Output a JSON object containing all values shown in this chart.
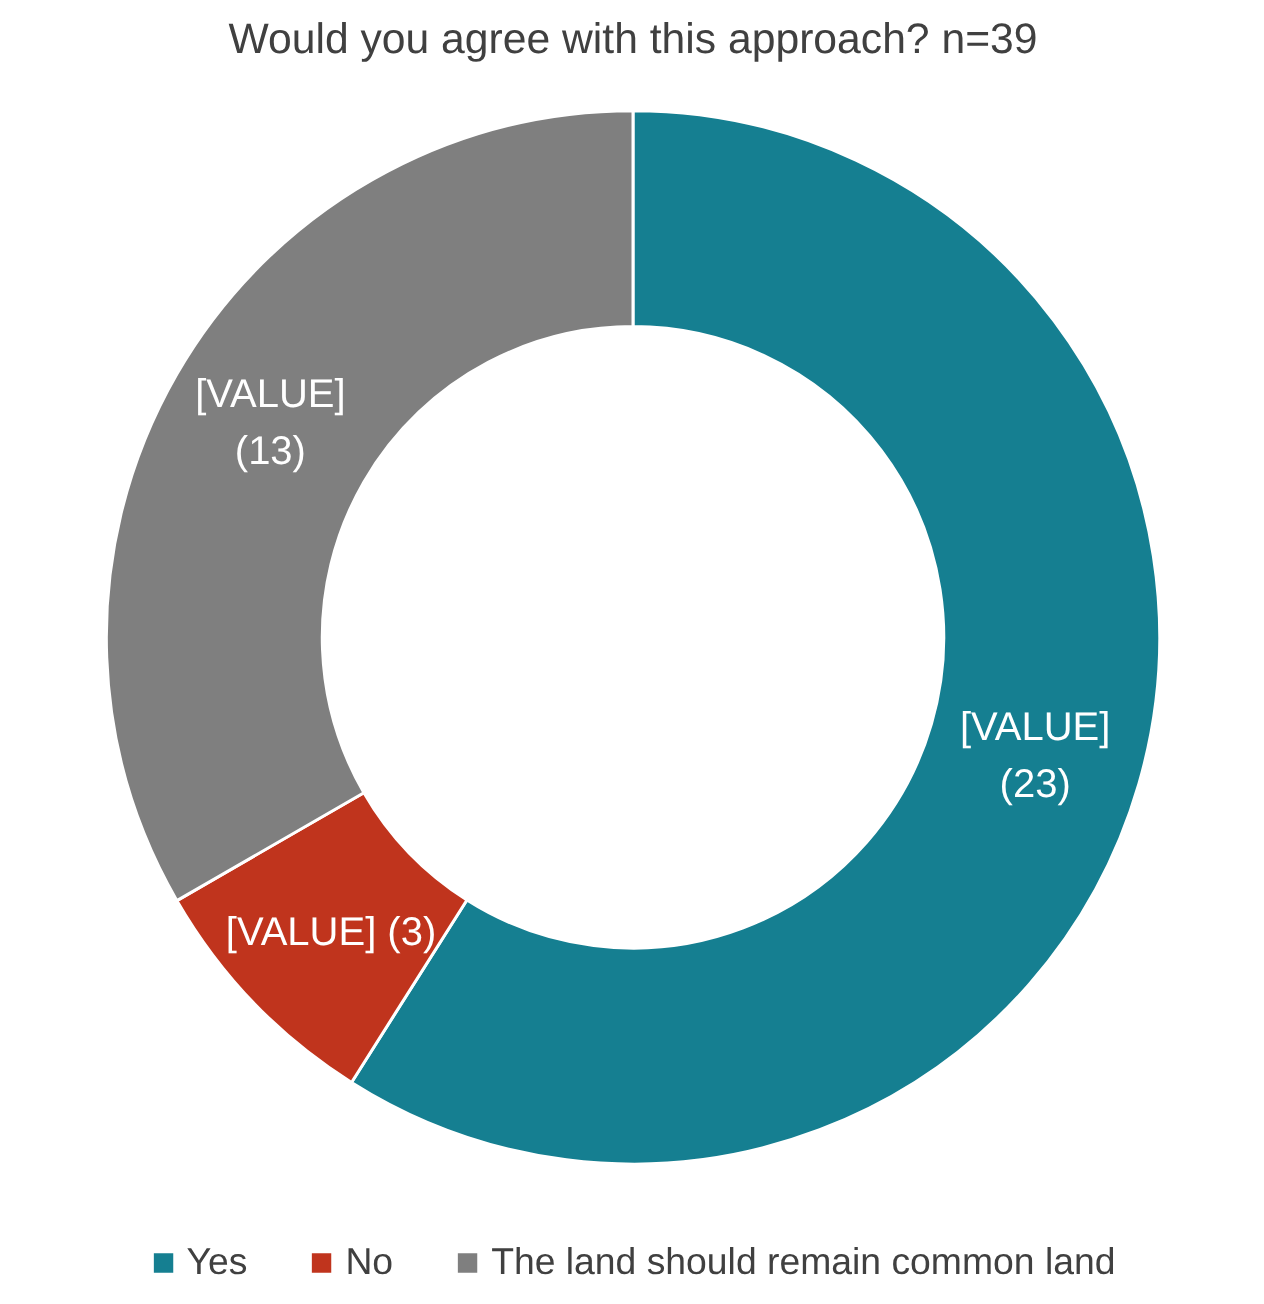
{
  "chart_data": {
    "type": "donut",
    "title": "Would you agree with this approach? n=39",
    "categories": [
      "Yes",
      "No",
      "The land should remain common land"
    ],
    "values": [
      23,
      3,
      13
    ],
    "colors": [
      "#157f91",
      "#c0341d",
      "#7f7f7f"
    ],
    "value_labels": [
      "[VALUE]\n(23)",
      "[VALUE] (3)",
      "[VALUE]\n(13)"
    ],
    "legend": "bottom"
  }
}
